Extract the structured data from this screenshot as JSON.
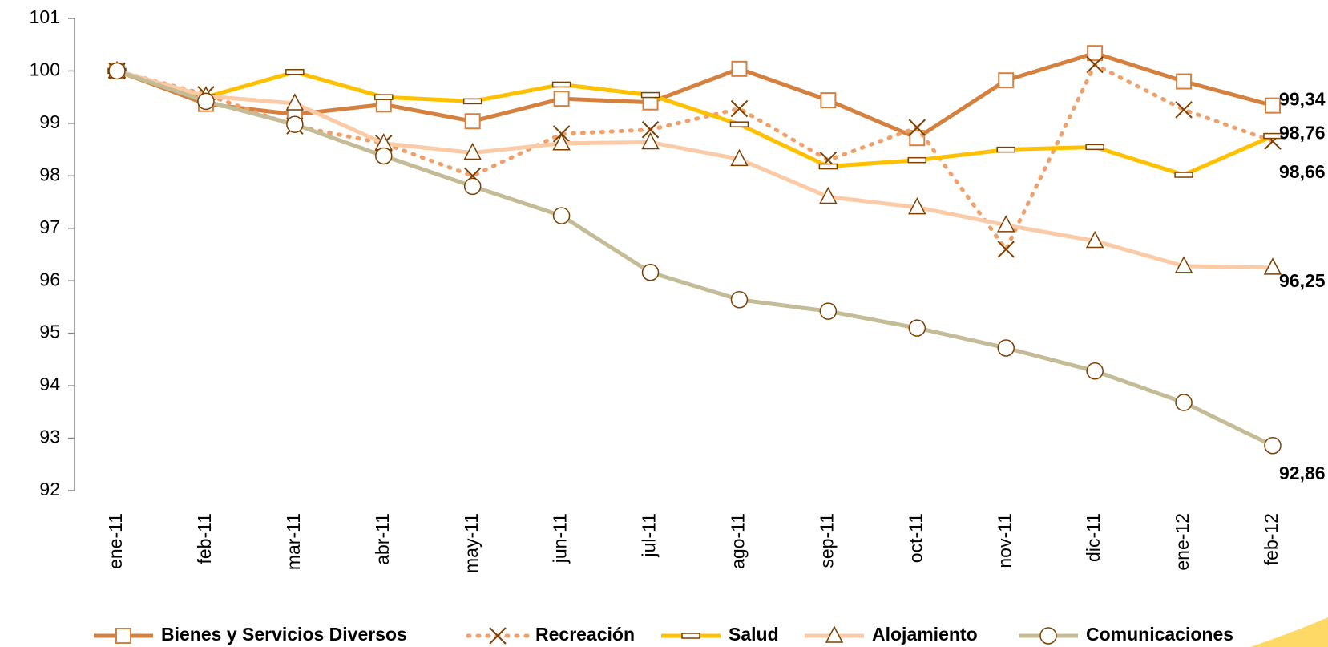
{
  "chart_data": {
    "type": "line",
    "categories": [
      "ene-11",
      "feb-11",
      "mar-11",
      "abr-11",
      "may-11",
      "jun-11",
      "jul-11",
      "ago-11",
      "sep-11",
      "oct-11",
      "nov-11",
      "dic-11",
      "ene-12",
      "feb-12"
    ],
    "ylim": [
      92,
      101
    ],
    "yticks": [
      92,
      93,
      94,
      95,
      96,
      97,
      98,
      99,
      100,
      101
    ],
    "series": [
      {
        "name": "Bienes y Servicios Diversos",
        "color": "#D4813F",
        "marker": "square",
        "line_style": "solid",
        "label_color": "#D4813F",
        "values": [
          100,
          99.37,
          99.17,
          99.36,
          99.04,
          99.47,
          99.4,
          100.04,
          99.44,
          98.72,
          99.82,
          100.34,
          99.8,
          99.34
        ],
        "value_labels": [
          null,
          null,
          null,
          null,
          null,
          null,
          null,
          null,
          null,
          null,
          null,
          null,
          null,
          "99,34"
        ]
      },
      {
        "name": "Recreación",
        "color": "#F0A06A",
        "marker": "x",
        "line_style": "dotted",
        "label_color": "#000000",
        "values": [
          100,
          99.55,
          98.95,
          98.62,
          98.0,
          98.8,
          98.88,
          99.28,
          98.3,
          98.92,
          96.6,
          100.12,
          99.26,
          98.66
        ],
        "value_labels": [
          null,
          null,
          null,
          null,
          null,
          null,
          null,
          null,
          null,
          null,
          null,
          null,
          null,
          "98,66"
        ]
      },
      {
        "name": "Salud",
        "color": "#FFC000",
        "marker": "dash",
        "line_style": "solid",
        "label_color": "#FFC000",
        "values": [
          100,
          99.5,
          99.98,
          99.5,
          99.42,
          99.74,
          99.54,
          98.98,
          98.18,
          98.3,
          98.5,
          98.55,
          98.02,
          98.76
        ],
        "value_labels": [
          null,
          null,
          null,
          null,
          null,
          null,
          null,
          null,
          null,
          null,
          null,
          null,
          null,
          "98,76"
        ]
      },
      {
        "name": "Alojamiento",
        "color": "#FBCBA8",
        "marker": "triangle",
        "line_style": "solid",
        "label_color": "#000000",
        "values": [
          100,
          99.52,
          99.38,
          98.62,
          98.44,
          98.62,
          98.64,
          98.32,
          97.6,
          97.4,
          97.06,
          96.76,
          96.28,
          96.25
        ],
        "value_labels": [
          null,
          null,
          null,
          null,
          null,
          null,
          null,
          null,
          null,
          null,
          null,
          null,
          null,
          "96,25"
        ]
      },
      {
        "name": "Comunicaciones",
        "color": "#C4BC96",
        "marker": "circle",
        "line_style": "solid",
        "label_color": "#A39A62",
        "values": [
          100,
          99.42,
          98.98,
          98.38,
          97.8,
          97.24,
          96.16,
          95.64,
          95.42,
          95.1,
          94.72,
          94.28,
          93.68,
          92.86
        ],
        "value_labels": [
          null,
          null,
          null,
          null,
          null,
          null,
          null,
          null,
          null,
          null,
          null,
          null,
          null,
          "92,86"
        ]
      }
    ]
  }
}
